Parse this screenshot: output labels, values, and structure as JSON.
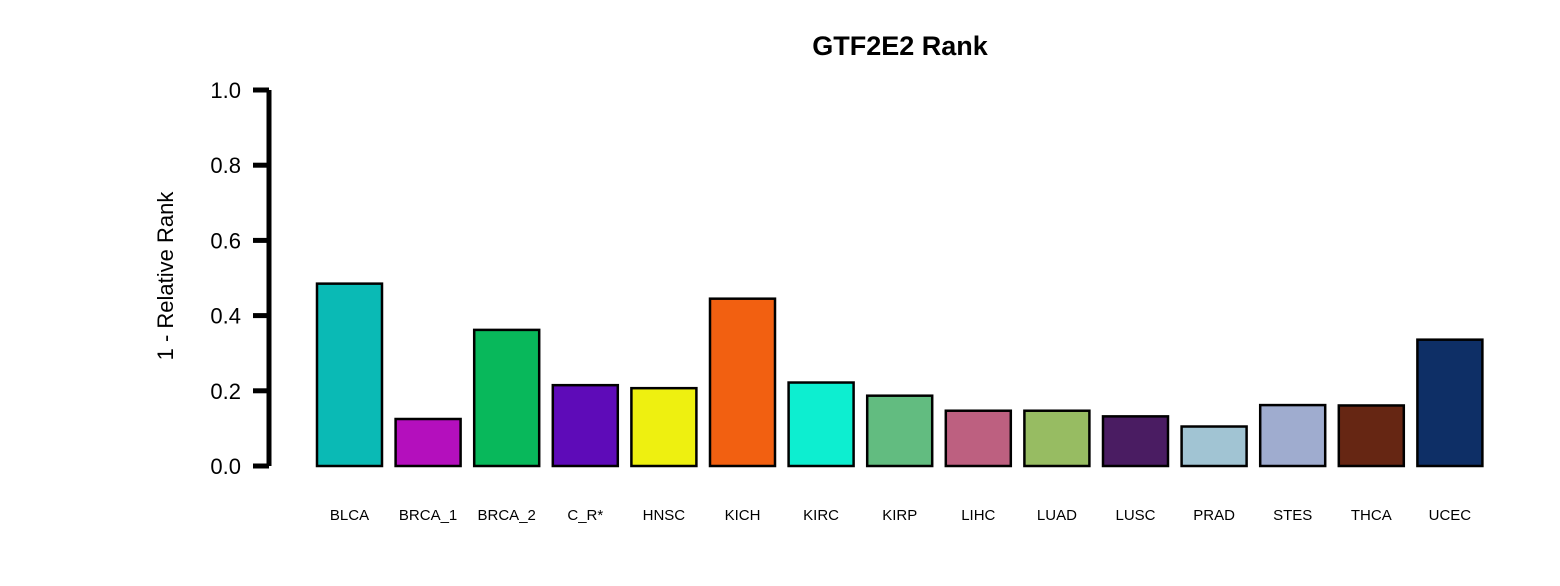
{
  "chart_data": {
    "type": "bar",
    "title": "GTF2E2 Rank",
    "xlabel": "",
    "ylabel": "1 - Relative Rank",
    "ylim": [
      0,
      1
    ],
    "yticks": [
      "0.0",
      "0.2",
      "0.4",
      "0.6",
      "0.8",
      "1.0"
    ],
    "grid": false,
    "legend": "none",
    "categories": [
      "BLCA",
      "BRCA_1",
      "BRCA_2",
      "C_R*",
      "HNSC",
      "KICH",
      "KIRC",
      "KIRP",
      "LIHC",
      "LUAD",
      "LUSC",
      "PRAD",
      "STES",
      "THCA",
      "UCEC"
    ],
    "values": [
      0.485,
      0.125,
      0.362,
      0.215,
      0.207,
      0.445,
      0.222,
      0.187,
      0.147,
      0.147,
      0.132,
      0.105,
      0.162,
      0.161,
      0.336
    ],
    "colors": [
      "#0abab5",
      "#b40fbd",
      "#08b85b",
      "#5e0bb8",
      "#eef010",
      "#f26011",
      "#0deed0",
      "#62bc80",
      "#bd6080",
      "#97bc62",
      "#4a1c62",
      "#a1c4d3",
      "#9faccf",
      "#662613",
      "#0e2f66"
    ]
  }
}
